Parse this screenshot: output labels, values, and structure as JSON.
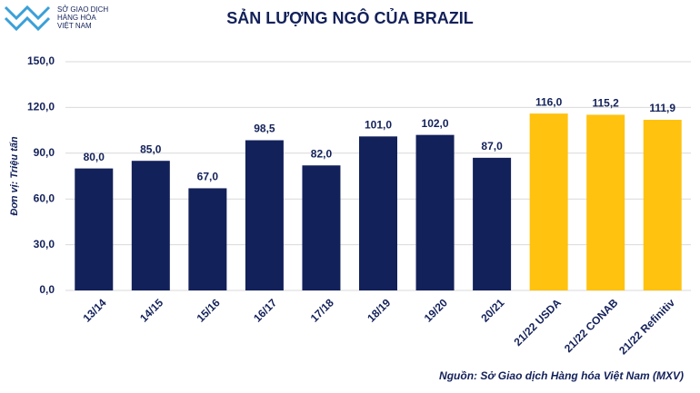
{
  "brand": {
    "lines": [
      "SỞ GIAO DỊCH",
      "HÀNG HÓA",
      "VIỆT NAM"
    ]
  },
  "chart_data": {
    "type": "bar",
    "title": "SẢN LƯỢNG NGÔ CỦA BRAZIL",
    "y_label": "Đơn vị: Triệu tấn",
    "source": "Nguồn: Sở Giao dịch Hàng hóa Việt Nam (MXV)",
    "categories": [
      "13/14",
      "14/15",
      "15/16",
      "16/17",
      "17/18",
      "18/19",
      "19/20",
      "20/21",
      "21/22 USDA",
      "21/22 CONAB",
      "21/22 Refinitiv"
    ],
    "values": [
      80,
      85,
      67,
      98.5,
      82,
      101,
      102,
      87,
      116,
      115.2,
      111.9
    ],
    "value_labels": [
      "80,0",
      "85,0",
      "67,0",
      "98,5",
      "82,0",
      "101,0",
      "102,0",
      "87,0",
      "116,0",
      "115,2",
      "111,9"
    ],
    "colors": [
      "#13215a",
      "#13215a",
      "#13215a",
      "#13215a",
      "#13215a",
      "#13215a",
      "#13215a",
      "#13215a",
      "#ffc20e",
      "#ffc20e",
      "#ffc20e"
    ],
    "ylim": [
      0,
      150
    ],
    "yticks": [
      {
        "value": 0,
        "label": "0,0"
      },
      {
        "value": 30,
        "label": "30,0"
      },
      {
        "value": 60,
        "label": "60,0"
      },
      {
        "value": 90,
        "label": "90,0"
      },
      {
        "value": 120,
        "label": "120,0"
      },
      {
        "value": 150,
        "label": "150,0"
      }
    ],
    "grid": true
  }
}
